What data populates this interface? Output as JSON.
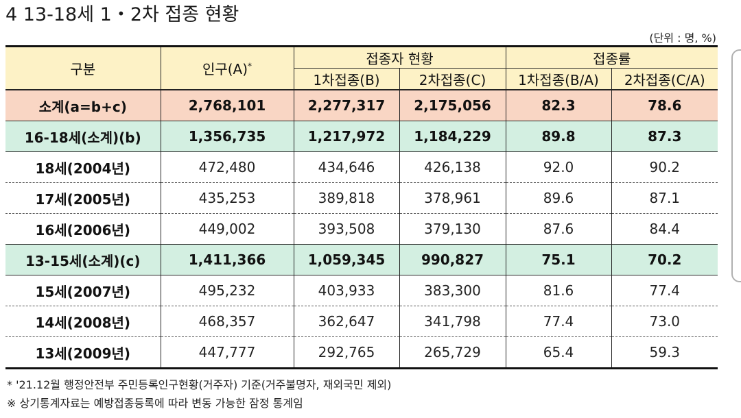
{
  "title": "4  13-18세 1・2차 접종 현황",
  "unit": "(단위 : 명, %)",
  "headers": {
    "category": "구분",
    "population": "인구(A)",
    "population_mark": "*",
    "vaccinated_group": "접종자 현황",
    "rate_group": "접종률",
    "first_dose": "1차접종(B)",
    "second_dose": "2차접종(C)",
    "first_rate": "1차접종(B/A)",
    "second_rate": "2차접종(C/A)"
  },
  "rows": [
    {
      "type": "total",
      "cells": [
        "소계(a=b+c)",
        "2,768,101",
        "2,277,317",
        "2,175,056",
        "82.3",
        "78.6"
      ]
    },
    {
      "type": "sub",
      "cells": [
        "16-18세(소계)(b)",
        "1,356,735",
        "1,217,972",
        "1,184,229",
        "89.8",
        "87.3"
      ]
    },
    {
      "type": "detail",
      "cells": [
        "18세(2004년)",
        "472,480",
        "434,646",
        "426,138",
        "92.0",
        "90.2"
      ]
    },
    {
      "type": "detail",
      "cells": [
        "17세(2005년)",
        "435,253",
        "389,818",
        "378,961",
        "89.6",
        "87.1"
      ]
    },
    {
      "type": "detail",
      "cells": [
        "16세(2006년)",
        "449,002",
        "393,508",
        "379,130",
        "87.6",
        "84.4"
      ]
    },
    {
      "type": "sub",
      "cells": [
        "13-15세(소계)(c)",
        "1,411,366",
        "1,059,345",
        "990,827",
        "75.1",
        "70.2"
      ]
    },
    {
      "type": "detail",
      "cells": [
        "15세(2007년)",
        "495,232",
        "403,933",
        "383,300",
        "81.6",
        "77.4"
      ]
    },
    {
      "type": "detail",
      "cells": [
        "14세(2008년)",
        "468,357",
        "362,647",
        "341,798",
        "77.4",
        "73.0"
      ]
    },
    {
      "type": "detail",
      "cells": [
        "13세(2009년)",
        "447,777",
        "292,765",
        "265,729",
        "65.4",
        "59.3"
      ]
    }
  ],
  "notes": [
    "* '21.12월 행정안전부 주민등록인구현황(거주자) 기준(거주불명자, 재외국민 제외)",
    "※ 상기통계자료는 예방접종등록에 따라 변동 가능한 잠정 통계임"
  ]
}
